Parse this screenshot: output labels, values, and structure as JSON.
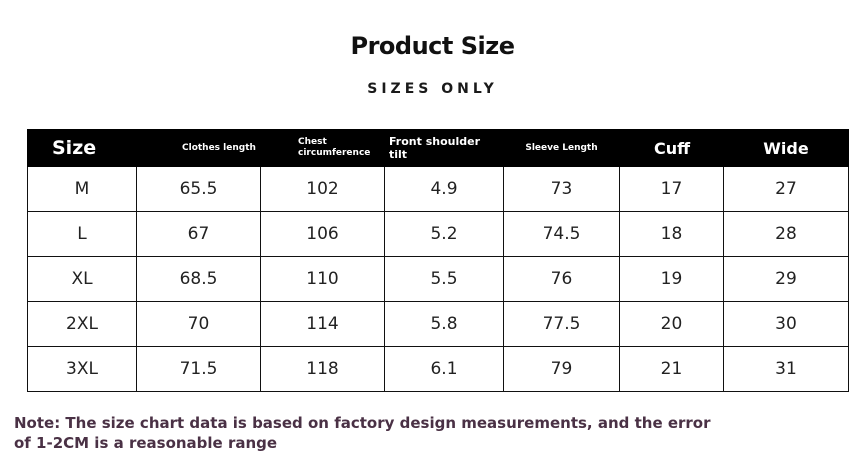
{
  "title": "Product Size",
  "subtitle": "SIZES ONLY",
  "table": {
    "headers": [
      "Size",
      "Clothes length",
      "Chest circumference",
      "Front shoulder tilt",
      "Sleeve Length",
      "Cuff",
      "Wide"
    ],
    "rows": [
      [
        "M",
        "65.5",
        "102",
        "4.9",
        "73",
        "17",
        "27"
      ],
      [
        "L",
        "67",
        "106",
        "5.2",
        "74.5",
        "18",
        "28"
      ],
      [
        "XL",
        "68.5",
        "110",
        "5.5",
        "76",
        "19",
        "29"
      ],
      [
        "2XL",
        "70",
        "114",
        "5.8",
        "77.5",
        "20",
        "30"
      ],
      [
        "3XL",
        "71.5",
        "118",
        "6.1",
        "79",
        "21",
        "31"
      ]
    ]
  },
  "note": "Note: The size chart data is based on factory design measurements, and the error of 1-2CM is a reasonable range",
  "colors": {
    "header_bg": "#000000",
    "header_text": "#ffffff",
    "note_text": "#4a3145"
  }
}
